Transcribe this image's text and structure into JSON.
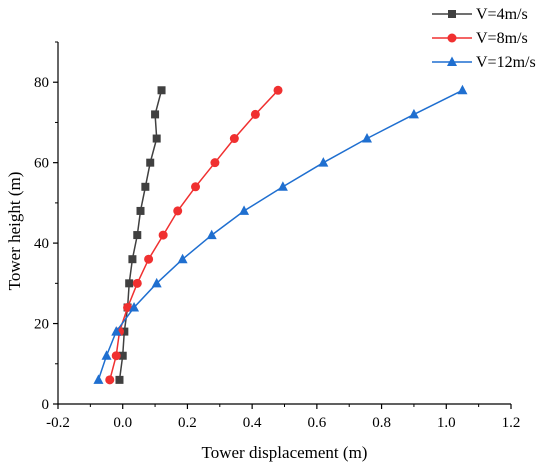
{
  "chart_data": {
    "type": "line",
    "xlabel": "Tower displacement (m)",
    "ylabel": "Tower height (m)",
    "xlim": [
      -0.2,
      1.2
    ],
    "ylim": [
      0,
      90
    ],
    "xticks": [
      "-0.2",
      "0.0",
      "0.2",
      "0.4",
      "0.6",
      "0.8",
      "1.0",
      "1.2"
    ],
    "yticks": [
      "0",
      "20",
      "40",
      "60",
      "80"
    ],
    "grid": false,
    "legend_position": "top-right",
    "series": [
      {
        "name": "V=4m/s",
        "color": "#404040",
        "marker": "square",
        "x": [
          -0.01,
          0.0,
          0.005,
          0.015,
          0.02,
          0.03,
          0.045,
          0.055,
          0.07,
          0.085,
          0.105,
          0.12
        ],
        "y": [
          6,
          12,
          18,
          24,
          30,
          36,
          42,
          48,
          54,
          60,
          66,
          78
        ],
        "extra_point": [
          0.1,
          72
        ]
      },
      {
        "name": "V=8m/s",
        "color": "#f03030",
        "marker": "circle",
        "x": [
          -0.04,
          -0.02,
          -0.01,
          0.015,
          0.045,
          0.08,
          0.125,
          0.17,
          0.225,
          0.285,
          0.345,
          0.41,
          0.48
        ],
        "y": [
          6,
          12,
          18,
          24,
          30,
          36,
          42,
          48,
          54,
          60,
          66,
          72,
          78
        ]
      },
      {
        "name": "V=12m/s",
        "color": "#1f6fd0",
        "marker": "triangle",
        "x": [
          -0.075,
          -0.05,
          -0.02,
          0.035,
          0.105,
          0.185,
          0.275,
          0.375,
          0.495,
          0.62,
          0.755,
          0.9,
          1.05
        ],
        "y": [
          6,
          12,
          18,
          24,
          30,
          36,
          42,
          48,
          54,
          60,
          66,
          72,
          78
        ]
      }
    ]
  }
}
